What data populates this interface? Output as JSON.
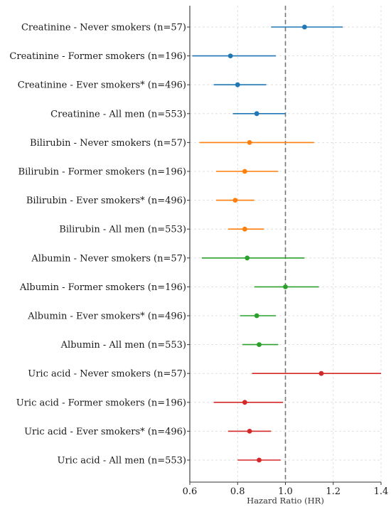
{
  "chart_data": {
    "type": "forest",
    "xlabel": "Hazard Ratio (HR)",
    "xlim": [
      0.6,
      1.4
    ],
    "xticks": [
      "0.6",
      "0.8",
      "1.0",
      "1.2",
      "1.4"
    ],
    "xtick_values": [
      0.6,
      0.8,
      1.0,
      1.2,
      1.4
    ],
    "reference_line": 1.0,
    "grid": true,
    "rows": [
      {
        "label": "Creatinine - Never smokers (n=57)",
        "hr": 1.08,
        "lo": 0.94,
        "hi": 1.24,
        "color": "#1f77b4"
      },
      {
        "label": "Creatinine - Former smokers (n=196)",
        "hr": 0.77,
        "lo": 0.61,
        "hi": 0.96,
        "color": "#1f77b4"
      },
      {
        "label": "Creatinine - Ever smokers* (n=496)",
        "hr": 0.8,
        "lo": 0.7,
        "hi": 0.92,
        "color": "#1f77b4"
      },
      {
        "label": "Creatinine - All men (n=553)",
        "hr": 0.88,
        "lo": 0.78,
        "hi": 1.0,
        "color": "#1f77b4"
      },
      {
        "label": "Bilirubin - Never smokers (n=57)",
        "hr": 0.85,
        "lo": 0.64,
        "hi": 1.12,
        "color": "#ff7f0e"
      },
      {
        "label": "Bilirubin - Former smokers (n=196)",
        "hr": 0.83,
        "lo": 0.71,
        "hi": 0.97,
        "color": "#ff7f0e"
      },
      {
        "label": "Bilirubin - Ever smokers* (n=496)",
        "hr": 0.79,
        "lo": 0.71,
        "hi": 0.87,
        "color": "#ff7f0e"
      },
      {
        "label": "Bilirubin - All men (n=553)",
        "hr": 0.83,
        "lo": 0.76,
        "hi": 0.91,
        "color": "#ff7f0e"
      },
      {
        "label": "Albumin - Never smokers (n=57)",
        "hr": 0.84,
        "lo": 0.65,
        "hi": 1.08,
        "color": "#2ca02c"
      },
      {
        "label": "Albumin - Former smokers (n=196)",
        "hr": 1.0,
        "lo": 0.87,
        "hi": 1.14,
        "color": "#2ca02c"
      },
      {
        "label": "Albumin - Ever smokers* (n=496)",
        "hr": 0.88,
        "lo": 0.81,
        "hi": 0.96,
        "color": "#2ca02c"
      },
      {
        "label": "Albumin - All men (n=553)",
        "hr": 0.89,
        "lo": 0.82,
        "hi": 0.97,
        "color": "#2ca02c"
      },
      {
        "label": "Uric acid - Never smokers (n=57)",
        "hr": 1.15,
        "lo": 0.86,
        "hi": 1.4,
        "color": "#d62728"
      },
      {
        "label": "Uric acid - Former smokers (n=196)",
        "hr": 0.83,
        "lo": 0.7,
        "hi": 0.99,
        "color": "#d62728"
      },
      {
        "label": "Uric acid - Ever smokers* (n=496)",
        "hr": 0.85,
        "lo": 0.76,
        "hi": 0.94,
        "color": "#d62728"
      },
      {
        "label": "Uric acid - All men (n=553)",
        "hr": 0.89,
        "lo": 0.8,
        "hi": 0.98,
        "color": "#d62728"
      }
    ]
  }
}
